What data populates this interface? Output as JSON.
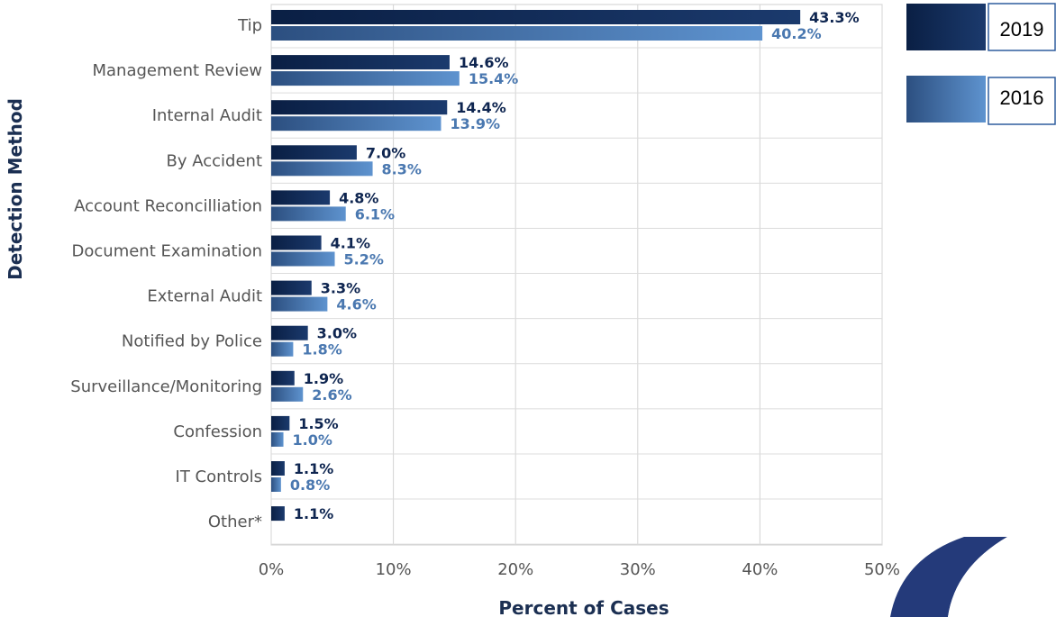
{
  "chart_data": {
    "type": "bar",
    "orientation": "horizontal",
    "title": "",
    "xlabel": "Percent of Cases",
    "ylabel": "Detection Method",
    "xlim": [
      0,
      50
    ],
    "x_ticks": [
      "0%",
      "10%",
      "20%",
      "30%",
      "40%",
      "50%"
    ],
    "grid": true,
    "legend_position": "top-right",
    "categories": [
      "Tip",
      "Management Review",
      "Internal Audit",
      "By Accident",
      "Account Reconcilliation",
      "Document Examination",
      "External Audit",
      "Notified by Police",
      "Surveillance/Monitoring",
      "Confession",
      "IT Controls",
      "Other*"
    ],
    "series": [
      {
        "name": "2019",
        "color": "#0e2550",
        "values": [
          43.3,
          14.6,
          14.4,
          7.0,
          4.8,
          4.1,
          3.3,
          3.0,
          1.9,
          1.5,
          1.1,
          1.1
        ],
        "labels": [
          "43.3%",
          "14.6%",
          "14.4%",
          "7.0%",
          "4.8%",
          "4.1%",
          "3.3%",
          "3.0%",
          "1.9%",
          "1.5%",
          "1.1%",
          "1.1%"
        ]
      },
      {
        "name": "2016",
        "color": "#4a78b0",
        "values": [
          40.2,
          15.4,
          13.9,
          8.3,
          6.1,
          5.2,
          4.6,
          1.8,
          2.6,
          1.0,
          0.8,
          null
        ],
        "labels": [
          "40.2%",
          "15.4%",
          "13.9%",
          "8.3%",
          "6.1%",
          "5.2%",
          "4.6%",
          "1.8%",
          "2.6%",
          "1.0%",
          "0.8%",
          null
        ]
      }
    ]
  }
}
